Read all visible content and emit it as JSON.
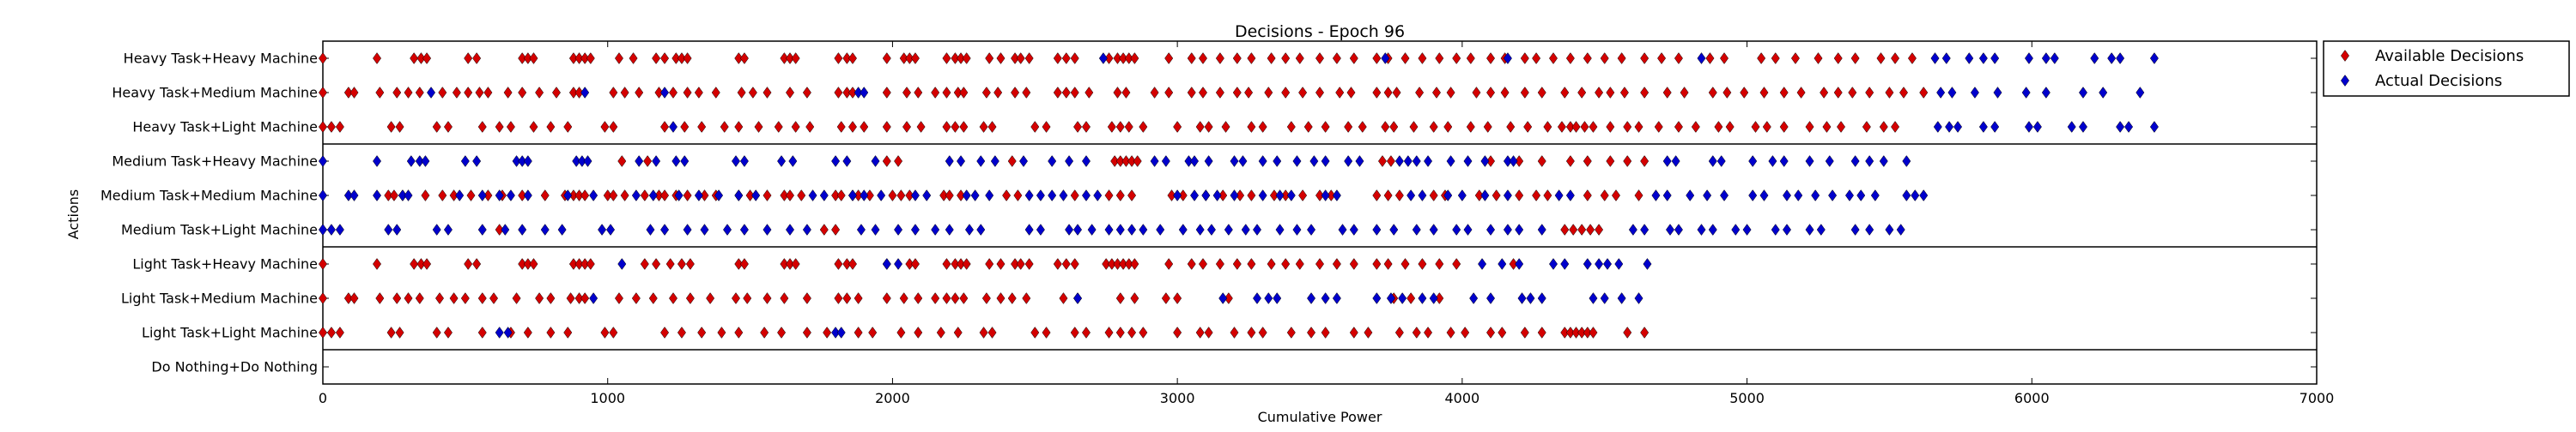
{
  "chart_data": {
    "type": "scatter",
    "title": "Decisions - Epoch 96",
    "xlabel": "Cumulative Power",
    "ylabel": "Actions",
    "xlim": [
      0,
      7000
    ],
    "xticks": [
      "0",
      "1000",
      "2000",
      "3000",
      "4000",
      "5000",
      "6000",
      "7000"
    ],
    "xtick_values": [
      0,
      1000,
      2000,
      3000,
      4000,
      5000,
      6000,
      7000
    ],
    "categories": [
      "Heavy Task+Heavy Machine",
      "Heavy Task+Medium Machine",
      "Heavy Task+Light Machine",
      "Medium Task+Heavy Machine",
      "Medium Task+Medium Machine",
      "Medium Task+Light Machine",
      "Light Task+Heavy Machine",
      "Light Task+Medium Machine",
      "Light Task+Light Machine",
      "Do Nothing+Do Nothing"
    ],
    "group_separators_after": [
      2,
      5,
      8
    ],
    "legend_position": "top-right",
    "grid": false,
    "series": [
      {
        "name": "Available Decisions",
        "color": "#d40000",
        "marker": "diamond",
        "points": [
          {
            "row": 0,
            "x": [
              0,
              190,
              320,
              345,
              365,
              510,
              540,
              700,
              720,
              740,
              880,
              900,
              920,
              940,
              1040,
              1090,
              1170,
              1200,
              1240,
              1260,
              1280,
              1460,
              1480,
              1620,
              1640,
              1660,
              1810,
              1840,
              1860,
              1980,
              2040,
              2060,
              2080,
              2190,
              2220,
              2240,
              2260,
              2340,
              2380,
              2430,
              2450,
              2480,
              2580,
              2610,
              2640,
              2760,
              2790,
              2810,
              2830,
              2850,
              2970,
              3050,
              3090,
              3150,
              3210,
              3260,
              3330,
              3380,
              3430,
              3500,
              3560,
              3620,
              3700,
              3740,
              3800,
              3860,
              3920,
              3980,
              4030,
              4100,
              4150,
              4220,
              4260,
              4320,
              4380,
              4440,
              4500,
              4560,
              4640,
              4700,
              4760,
              4870,
              4920,
              5050,
              5100,
              5170,
              5250,
              5320,
              5380,
              5470,
              5520,
              5580
            ]
          },
          {
            "row": 1,
            "x": [
              0,
              90,
              110,
              200,
              260,
              300,
              340,
              420,
              470,
              510,
              550,
              580,
              650,
              700,
              760,
              820,
              880,
              900,
              1020,
              1060,
              1110,
              1180,
              1230,
              1280,
              1320,
              1380,
              1470,
              1510,
              1560,
              1640,
              1700,
              1810,
              1840,
              1860,
              1980,
              2050,
              2090,
              2150,
              2190,
              2230,
              2250,
              2330,
              2370,
              2430,
              2470,
              2580,
              2610,
              2640,
              2690,
              2790,
              2820,
              2920,
              2970,
              3050,
              3090,
              3150,
              3210,
              3250,
              3320,
              3380,
              3440,
              3500,
              3570,
              3610,
              3700,
              3740,
              3770,
              3850,
              3910,
              3960,
              4050,
              4100,
              4150,
              4220,
              4280,
              4360,
              4420,
              4480,
              4520,
              4570,
              4640,
              4720,
              4780,
              4880,
              4930,
              4990,
              5060,
              5130,
              5190,
              5270,
              5320,
              5370,
              5430,
              5500,
              5550,
              5620
            ]
          },
          {
            "row": 2,
            "x": [
              0,
              30,
              60,
              240,
              270,
              400,
              440,
              560,
              620,
              660,
              740,
              800,
              860,
              990,
              1020,
              1200,
              1270,
              1330,
              1410,
              1460,
              1530,
              1600,
              1660,
              1710,
              1820,
              1860,
              1900,
              1980,
              2050,
              2100,
              2190,
              2220,
              2250,
              2320,
              2350,
              2500,
              2540,
              2650,
              2680,
              2770,
              2800,
              2830,
              2880,
              3000,
              3080,
              3110,
              3170,
              3260,
              3300,
              3400,
              3460,
              3520,
              3600,
              3650,
              3730,
              3760,
              3830,
              3900,
              3950,
              4030,
              4090,
              4170,
              4230,
              4300,
              4350,
              4380,
              4400,
              4430,
              4460,
              4520,
              4580,
              4620,
              4690,
              4760,
              4820,
              4900,
              4940,
              5030,
              5070,
              5130,
              5220,
              5280,
              5330,
              5420,
              5480,
              5520
            ]
          },
          {
            "row": 3,
            "x": [
              1050,
              1140,
              1980,
              2020,
              2420,
              2780,
              2800,
              2820,
              2840,
              2860,
              3720,
              3750,
              4100,
              4200,
              4280,
              4380,
              4440,
              4520,
              4580,
              4640
            ]
          },
          {
            "row": 4,
            "x": [
              230,
              250,
              280,
              360,
              420,
              460,
              520,
              580,
              630,
              700,
              780,
              850,
              880,
              900,
              920,
              1000,
              1020,
              1060,
              1130,
              1180,
              1200,
              1240,
              1280,
              1340,
              1380,
              1460,
              1500,
              1560,
              1620,
              1640,
              1680,
              1800,
              1820,
              1860,
              1880,
              1920,
              2000,
              2030,
              2060,
              2180,
              2200,
              2240,
              2400,
              2440,
              2640,
              2760,
              2800,
              2840,
              2980,
              3020,
              3100,
              3160,
              3220,
              3260,
              3340,
              3380,
              3440,
              3500,
              3540,
              3700,
              3740,
              3780,
              3900,
              3940,
              4060,
              4120,
              4200,
              4260,
              4300,
              4440,
              4500,
              4540,
              4620
            ]
          },
          {
            "row": 5,
            "x": [
              620,
              1760,
              1800,
              4360,
              4390,
              4420,
              4450,
              4480
            ]
          },
          {
            "row": 6,
            "x": [
              0,
              190,
              320,
              345,
              365,
              510,
              540,
              700,
              720,
              740,
              880,
              900,
              920,
              940,
              1130,
              1170,
              1220,
              1260,
              1290,
              1460,
              1480,
              1620,
              1640,
              1660,
              1810,
              1840,
              1860,
              1980,
              2060,
              2080,
              2190,
              2220,
              2240,
              2260,
              2340,
              2380,
              2430,
              2450,
              2480,
              2580,
              2610,
              2640,
              2750,
              2770,
              2790,
              2810,
              2830,
              2850,
              2970,
              3050,
              3090,
              3150,
              3210,
              3260,
              3330,
              3380,
              3430,
              3500,
              3560,
              3620,
              3700,
              3740,
              3800,
              3860,
              3920,
              3980,
              4180
            ]
          },
          {
            "row": 7,
            "x": [
              0,
              90,
              110,
              200,
              260,
              300,
              340,
              410,
              460,
              500,
              560,
              600,
              680,
              760,
              800,
              870,
              900,
              920,
              1040,
              1100,
              1160,
              1230,
              1290,
              1360,
              1450,
              1490,
              1560,
              1620,
              1700,
              1810,
              1840,
              1880,
              1980,
              2040,
              2090,
              2150,
              2190,
              2220,
              2250,
              2330,
              2380,
              2420,
              2470,
              2600,
              2650,
              2800,
              2850,
              2960,
              3000,
              3180,
              3760,
              3820,
              3920
            ]
          },
          {
            "row": 8,
            "x": [
              0,
              30,
              60,
              240,
              270,
              400,
              440,
              560,
              660,
              720,
              800,
              860,
              990,
              1020,
              1200,
              1260,
              1330,
              1400,
              1460,
              1550,
              1610,
              1700,
              1770,
              1880,
              1930,
              2030,
              2090,
              2170,
              2230,
              2320,
              2350,
              2500,
              2540,
              2640,
              2680,
              2760,
              2800,
              2840,
              2880,
              3000,
              3080,
              3110,
              3200,
              3260,
              3300,
              3400,
              3470,
              3520,
              3620,
              3670,
              3780,
              3840,
              3880,
              3960,
              4010,
              4100,
              4140,
              4220,
              4280,
              4360,
              4380,
              4400,
              4420,
              4440,
              4460,
              4580,
              4640
            ]
          }
        ]
      },
      {
        "name": "Actual Decisions",
        "color": "#0000cc",
        "marker": "diamond",
        "points": [
          {
            "row": 0,
            "x": [
              2740,
              3730,
              4160,
              4840,
              5660,
              5700,
              5780,
              5830,
              5870,
              5990,
              6050,
              6080,
              6220,
              6280,
              6310,
              6430
            ]
          },
          {
            "row": 1,
            "x": [
              380,
              920,
              1200,
              1880,
              1900,
              5680,
              5720,
              5800,
              5880,
              5980,
              6050,
              6180,
              6250,
              6380
            ]
          },
          {
            "row": 2,
            "x": [
              1230,
              5670,
              5710,
              5740,
              5830,
              5870,
              5990,
              6020,
              6140,
              6180,
              6310,
              6340,
              6430
            ]
          },
          {
            "row": 3,
            "x": [
              0,
              190,
              310,
              340,
              360,
              500,
              540,
              680,
              700,
              720,
              890,
              910,
              930,
              1110,
              1170,
              1240,
              1270,
              1450,
              1480,
              1610,
              1650,
              1800,
              1840,
              1940,
              2200,
              2240,
              2310,
              2360,
              2460,
              2560,
              2620,
              2680,
              2920,
              2960,
              3040,
              3060,
              3110,
              3200,
              3230,
              3300,
              3350,
              3420,
              3480,
              3520,
              3600,
              3640,
              3780,
              3810,
              3840,
              3880,
              3960,
              4020,
              4080,
              4160,
              4180,
              4720,
              4750,
              4880,
              4910,
              5020,
              5090,
              5130,
              5220,
              5290,
              5380,
              5430,
              5480,
              5560
            ]
          },
          {
            "row": 4,
            "x": [
              0,
              90,
              110,
              190,
              280,
              300,
              480,
              560,
              620,
              660,
              720,
              860,
              950,
              1100,
              1160,
              1250,
              1320,
              1390,
              1460,
              1520,
              1720,
              1760,
              1860,
              1900,
              1960,
              2080,
              2120,
              2260,
              2290,
              2340,
              2480,
              2520,
              2560,
              2600,
              2680,
              2720,
              3000,
              3060,
              3100,
              3140,
              3200,
              3300,
              3360,
              3400,
              3520,
              3560,
              3820,
              3860,
              3950,
              4000,
              4080,
              4160,
              4340,
              4380,
              4680,
              4720,
              4800,
              4860,
              4920,
              5020,
              5060,
              5140,
              5180,
              5240,
              5300,
              5360,
              5400,
              5450,
              5560,
              5590,
              5620
            ]
          },
          {
            "row": 5,
            "x": [
              0,
              30,
              60,
              230,
              260,
              400,
              440,
              560,
              640,
              700,
              780,
              840,
              980,
              1010,
              1150,
              1200,
              1280,
              1340,
              1420,
              1480,
              1560,
              1640,
              1700,
              1890,
              1940,
              2020,
              2080,
              2150,
              2200,
              2270,
              2310,
              2480,
              2520,
              2620,
              2650,
              2700,
              2760,
              2800,
              2840,
              2880,
              2940,
              3020,
              3080,
              3120,
              3180,
              3240,
              3280,
              3360,
              3420,
              3470,
              3580,
              3620,
              3700,
              3760,
              3840,
              3900,
              3980,
              4020,
              4100,
              4160,
              4200,
              4280,
              4600,
              4640,
              4730,
              4760,
              4840,
              4880,
              4960,
              5000,
              5100,
              5140,
              5220,
              5260,
              5380,
              5430,
              5500,
              5540
            ]
          },
          {
            "row": 6,
            "x": [
              1050,
              1980,
              2020,
              4070,
              4140,
              4200,
              4320,
              4360,
              4440,
              4480,
              4510,
              4550,
              4650
            ]
          },
          {
            "row": 7,
            "x": [
              950,
              2650,
              3160,
              3280,
              3320,
              3350,
              3470,
              3520,
              3560,
              3700,
              3750,
              3790,
              3860,
              3900,
              4040,
              4100,
              4210,
              4240,
              4280,
              4460,
              4500,
              4560,
              4620
            ]
          },
          {
            "row": 8,
            "x": [
              620,
              650,
              1800,
              1820
            ]
          }
        ]
      }
    ]
  }
}
